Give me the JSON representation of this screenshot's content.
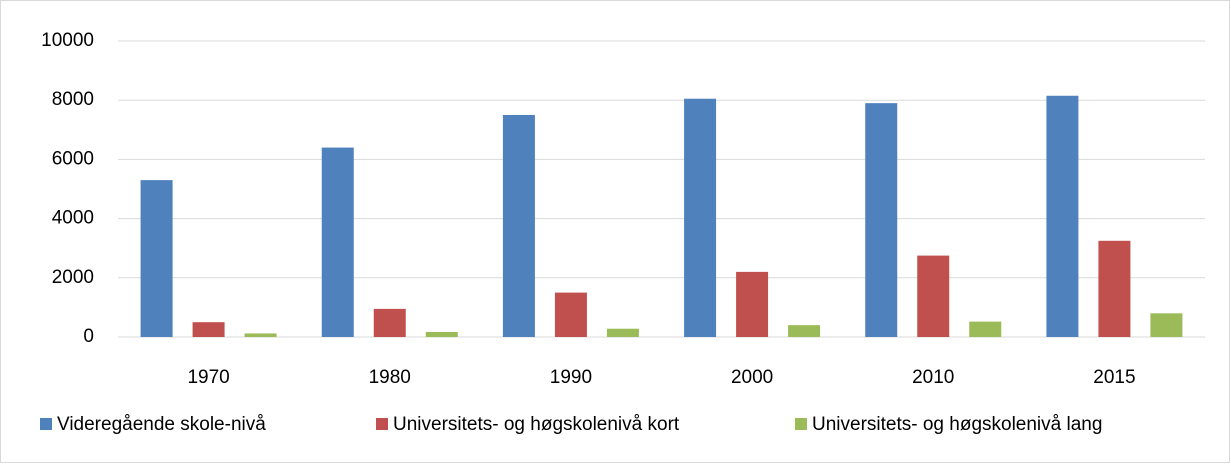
{
  "chart_data": {
    "type": "bar",
    "categories": [
      "1970",
      "1980",
      "1990",
      "2000",
      "2010",
      "2015"
    ],
    "series": [
      {
        "name": "Videregående skole-nivå",
        "color": "#4f81bd",
        "values": [
          5300,
          6400,
          7500,
          8050,
          7900,
          8150
        ]
      },
      {
        "name": "Universitets- og høgskolenivå kort",
        "color": "#c0504d",
        "values": [
          500,
          950,
          1500,
          2200,
          2750,
          3250
        ]
      },
      {
        "name": "Universitets- og høgskolenivå lang",
        "color": "#9bbb59",
        "values": [
          120,
          170,
          280,
          400,
          520,
          800
        ]
      }
    ],
    "ylim": [
      0,
      10000
    ],
    "yticks": [
      0,
      2000,
      4000,
      6000,
      8000,
      10000
    ],
    "grid": true,
    "legend": "bottom"
  }
}
